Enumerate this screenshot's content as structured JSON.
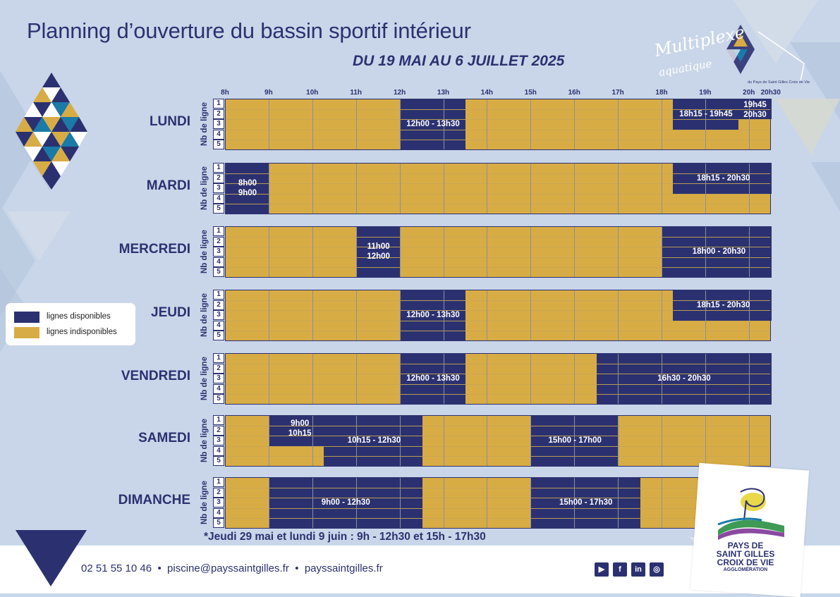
{
  "header": {
    "title": "Planning d’ouverture du bassin sportif intérieur",
    "subtitle": "DU 19 MAI AU 6 JUILLET 2025"
  },
  "logo_top": {
    "line1": "Multiplexe",
    "line2": "aquatique",
    "tagline": "du Pays de Saint Gilles Croix de Vie"
  },
  "hours": [
    "8h",
    "9h",
    "10h",
    "11h",
    "12h",
    "13h",
    "14h",
    "15h",
    "16h",
    "17h",
    "18h",
    "19h",
    "20h",
    "20h30"
  ],
  "axis_label": "Nb de ligne",
  "line_numbers": [
    "1",
    "2",
    "3",
    "4",
    "5"
  ],
  "days": [
    {
      "name": "LUNDI",
      "blocks": [
        {
          "start": 12,
          "end": 13.5,
          "lines": [
            1,
            2,
            3,
            4,
            5
          ]
        },
        {
          "start": 18.25,
          "end": 19.75,
          "lines": [
            1,
            2,
            3
          ]
        },
        {
          "start": 19.75,
          "end": 20.5,
          "lines": [
            1,
            2
          ]
        }
      ],
      "labels": [
        {
          "text": "12h00 - 13h30",
          "at": 12.75
        },
        {
          "text": "18h15 - 19h45",
          "at": 19.0
        },
        {
          "text": "19h45",
          "at": 20.125
        },
        {
          "text": "20h30",
          "at": 20.125
        }
      ]
    },
    {
      "name": "MARDI",
      "blocks": [
        {
          "start": 8,
          "end": 9,
          "lines": [
            1,
            2,
            3,
            4,
            5
          ]
        },
        {
          "start": 18.25,
          "end": 20.5,
          "lines": [
            1,
            2,
            3
          ]
        }
      ],
      "labels": [
        {
          "text": "8h00",
          "at": 8.5
        },
        {
          "text": "9h00",
          "at": 8.5
        },
        {
          "text": "18h15 - 20h30",
          "at": 19.4
        }
      ]
    },
    {
      "name": "MERCREDI",
      "blocks": [
        {
          "start": 11,
          "end": 12,
          "lines": [
            1,
            2,
            3,
            4,
            5
          ]
        },
        {
          "start": 18,
          "end": 20.5,
          "lines": [
            1,
            2,
            3,
            4,
            5
          ]
        }
      ],
      "labels": [
        {
          "text": "11h00",
          "at": 11.5
        },
        {
          "text": "12h00",
          "at": 11.5
        },
        {
          "text": "18h00 - 20h30",
          "at": 19.3
        }
      ]
    },
    {
      "name": "JEUDI",
      "blocks": [
        {
          "start": 12,
          "end": 13.5,
          "lines": [
            1,
            2,
            3,
            4,
            5
          ]
        },
        {
          "start": 18.25,
          "end": 20.5,
          "lines": [
            1,
            2,
            3
          ]
        }
      ],
      "labels": [
        {
          "text": "12h00 - 13h30",
          "at": 12.75
        },
        {
          "text": "18h15 - 20h30",
          "at": 19.4
        }
      ]
    },
    {
      "name": "VENDREDI",
      "blocks": [
        {
          "start": 12,
          "end": 13.5,
          "lines": [
            1,
            2,
            3,
            4,
            5
          ]
        },
        {
          "start": 16.5,
          "end": 20.5,
          "lines": [
            1,
            2,
            3,
            4,
            5
          ]
        }
      ],
      "labels": [
        {
          "text": "12h00 - 13h30",
          "at": 12.75
        },
        {
          "text": "16h30 - 20h30",
          "at": 18.5
        }
      ]
    },
    {
      "name": "SAMEDI",
      "blocks": [
        {
          "start": 9,
          "end": 10.25,
          "lines": [
            1,
            2,
            3
          ]
        },
        {
          "start": 10.25,
          "end": 12.5,
          "lines": [
            1,
            2,
            3,
            4,
            5
          ]
        },
        {
          "start": 15,
          "end": 17,
          "lines": [
            1,
            2,
            3,
            4,
            5
          ]
        }
      ],
      "labels": [
        {
          "text": "9h00",
          "at": 9.7
        },
        {
          "text": "10h15",
          "at": 9.7
        },
        {
          "text": "10h15 - 12h30",
          "at": 11.4
        },
        {
          "text": "15h00 - 17h00",
          "at": 16.0
        }
      ]
    },
    {
      "name": "DIMANCHE",
      "blocks": [
        {
          "start": 9,
          "end": 12.5,
          "lines": [
            1,
            2,
            3,
            4,
            5
          ]
        },
        {
          "start": 15,
          "end": 17.5,
          "lines": [
            1,
            2,
            3,
            4,
            5
          ]
        }
      ],
      "labels": [
        {
          "text": "9h00 - 12h30",
          "at": 10.75
        },
        {
          "text": "15h00 - 17h30",
          "at": 16.25
        }
      ]
    }
  ],
  "legend": {
    "available": {
      "label": "lignes disponibles",
      "color": "#2b3170"
    },
    "unavailable": {
      "label": "lignes indisponibles",
      "color": "#d8ac45"
    }
  },
  "note": "*Jeudi 29 mai et lundi 9 juin : 9h - 12h30 et 15h - 17h30",
  "footer": {
    "phone": "02 51 55 10 46",
    "email": "piscine@payssaintgilles.fr",
    "website": "payssaintgilles.fr",
    "separator": "•",
    "social": [
      {
        "icon": "youtube-icon",
        "glyph": "▶"
      },
      {
        "icon": "facebook-icon",
        "glyph": "f"
      },
      {
        "icon": "linkedin-icon",
        "glyph": "in"
      },
      {
        "icon": "instagram-icon",
        "glyph": "◎"
      }
    ]
  },
  "logo_bottom": {
    "line1": "PAYS DE",
    "line2": "SAINT GILLES",
    "line3": "CROIX DE VIE",
    "line4": "AGGLOMÉRATION"
  },
  "colors": {
    "navy": "#2b3170",
    "gold": "#d8ac45",
    "teal": "#1a7aa8",
    "background": "#c9d6e9"
  }
}
